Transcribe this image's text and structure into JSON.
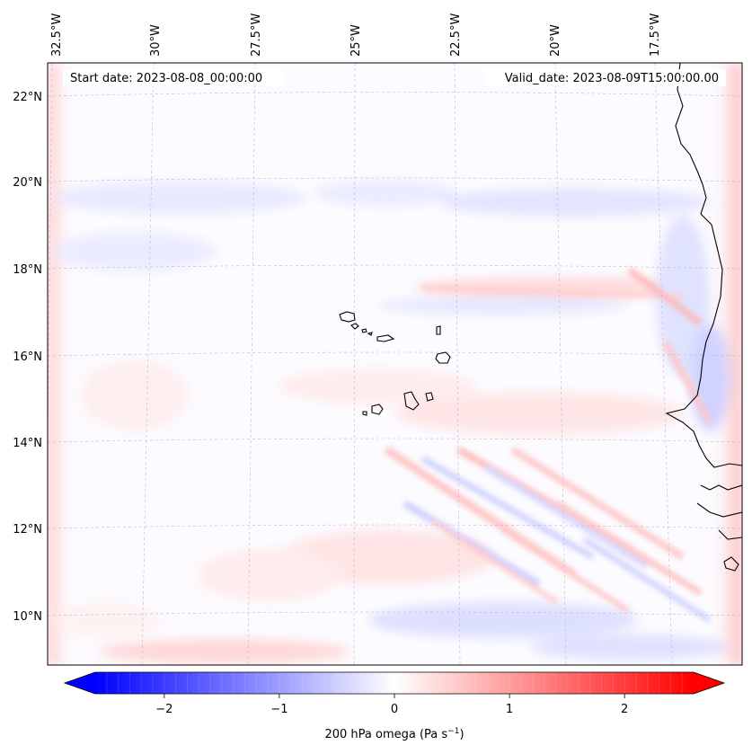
{
  "map": {
    "start_label": "Start date: 2023-08-08_00:00:00",
    "valid_label": "Valid_date: 2023-08-09T15:00:00.00",
    "lon_ticks": [
      "32.5°W",
      "30°W",
      "27.5°W",
      "25°W",
      "22.5°W",
      "20°W",
      "17.5°W"
    ],
    "lat_ticks": [
      "22°N",
      "20°N",
      "18°N",
      "16°N",
      "14°N",
      "12°N",
      "10°N"
    ],
    "extent": {
      "lon_min": -32.8,
      "lon_max": -15.6,
      "lat_min": 8.9,
      "lat_max": 22.8
    }
  },
  "colorbar": {
    "label_main": "200 hPa omega (Pa s",
    "label_sup": "−1",
    "label_close": ")",
    "ticks": [
      "−2",
      "−1",
      "0",
      "1",
      "2"
    ],
    "tick_values": [
      -2,
      -1,
      0,
      1,
      2
    ],
    "vmin": -2.6,
    "vmax": 2.6,
    "extend": "both",
    "cmap": [
      "#0000ff",
      "#ffffff",
      "#ff0000"
    ]
  }
}
